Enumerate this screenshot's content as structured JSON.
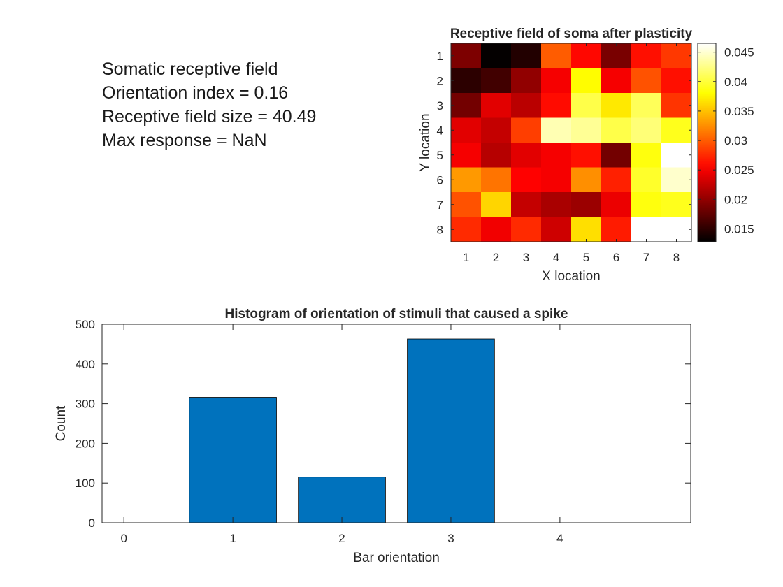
{
  "info_lines": [
    "Somatic receptive field",
    "Orientation index = 0.16",
    "Receptive field size = 40.49",
    "Max response = NaN"
  ],
  "chart_data": [
    {
      "type": "heatmap",
      "title": "Receptive field of soma after plasticity",
      "xlabel": "X location",
      "ylabel": "Y location",
      "x_ticks": [
        "1",
        "2",
        "3",
        "4",
        "5",
        "6",
        "7",
        "8"
      ],
      "y_ticks": [
        "1",
        "2",
        "3",
        "4",
        "5",
        "6",
        "7",
        "8"
      ],
      "y_direction": "top-to-bottom",
      "colormap": "hot",
      "color_range": [
        0.0128,
        0.0465
      ],
      "colorbar_ticks": [
        "0.045",
        "0.04",
        "0.035",
        "0.03",
        "0.025",
        "0.02",
        "0.015"
      ],
      "colorbar_tick_values": [
        0.045,
        0.04,
        0.035,
        0.03,
        0.025,
        0.02,
        0.015
      ],
      "values": [
        [
          0.019,
          0.013,
          0.0145,
          0.03,
          0.0258,
          0.0188,
          0.0262,
          0.0282
        ],
        [
          0.015,
          0.016,
          0.02,
          0.025,
          0.038,
          0.025,
          0.0295,
          0.0262
        ],
        [
          0.0185,
          0.024,
          0.022,
          0.026,
          0.0405,
          0.037,
          0.041,
          0.028
        ],
        [
          0.024,
          0.0225,
          0.0285,
          0.044,
          0.043,
          0.0405,
          0.042,
          0.039
        ],
        [
          0.025,
          0.0218,
          0.024,
          0.025,
          0.0262,
          0.0185,
          0.0385,
          0.0465
        ],
        [
          0.033,
          0.0312,
          0.0255,
          0.025,
          0.0325,
          0.027,
          0.0395,
          0.0448
        ],
        [
          0.0295,
          0.036,
          0.0225,
          0.0212,
          0.0205,
          0.0245,
          0.0385,
          0.039
        ],
        [
          0.0275,
          0.0248,
          0.0275,
          0.023,
          0.0365,
          0.0268,
          0.0465,
          0.0465
        ]
      ]
    },
    {
      "type": "bar",
      "title": "Histogram of orientation of stimuli that caused a spike",
      "xlabel": "Bar orientation",
      "ylabel": "Count",
      "x": [
        1,
        2,
        3
      ],
      "values": [
        316,
        115,
        463
      ],
      "xlim": [
        -0.2,
        5.2
      ],
      "ylim": [
        0,
        500
      ],
      "x_ticks": [
        0,
        1,
        2,
        3,
        4
      ],
      "y_ticks": [
        0,
        100,
        200,
        300,
        400,
        500
      ],
      "bar_color": "#0072bd",
      "grid": false
    }
  ]
}
